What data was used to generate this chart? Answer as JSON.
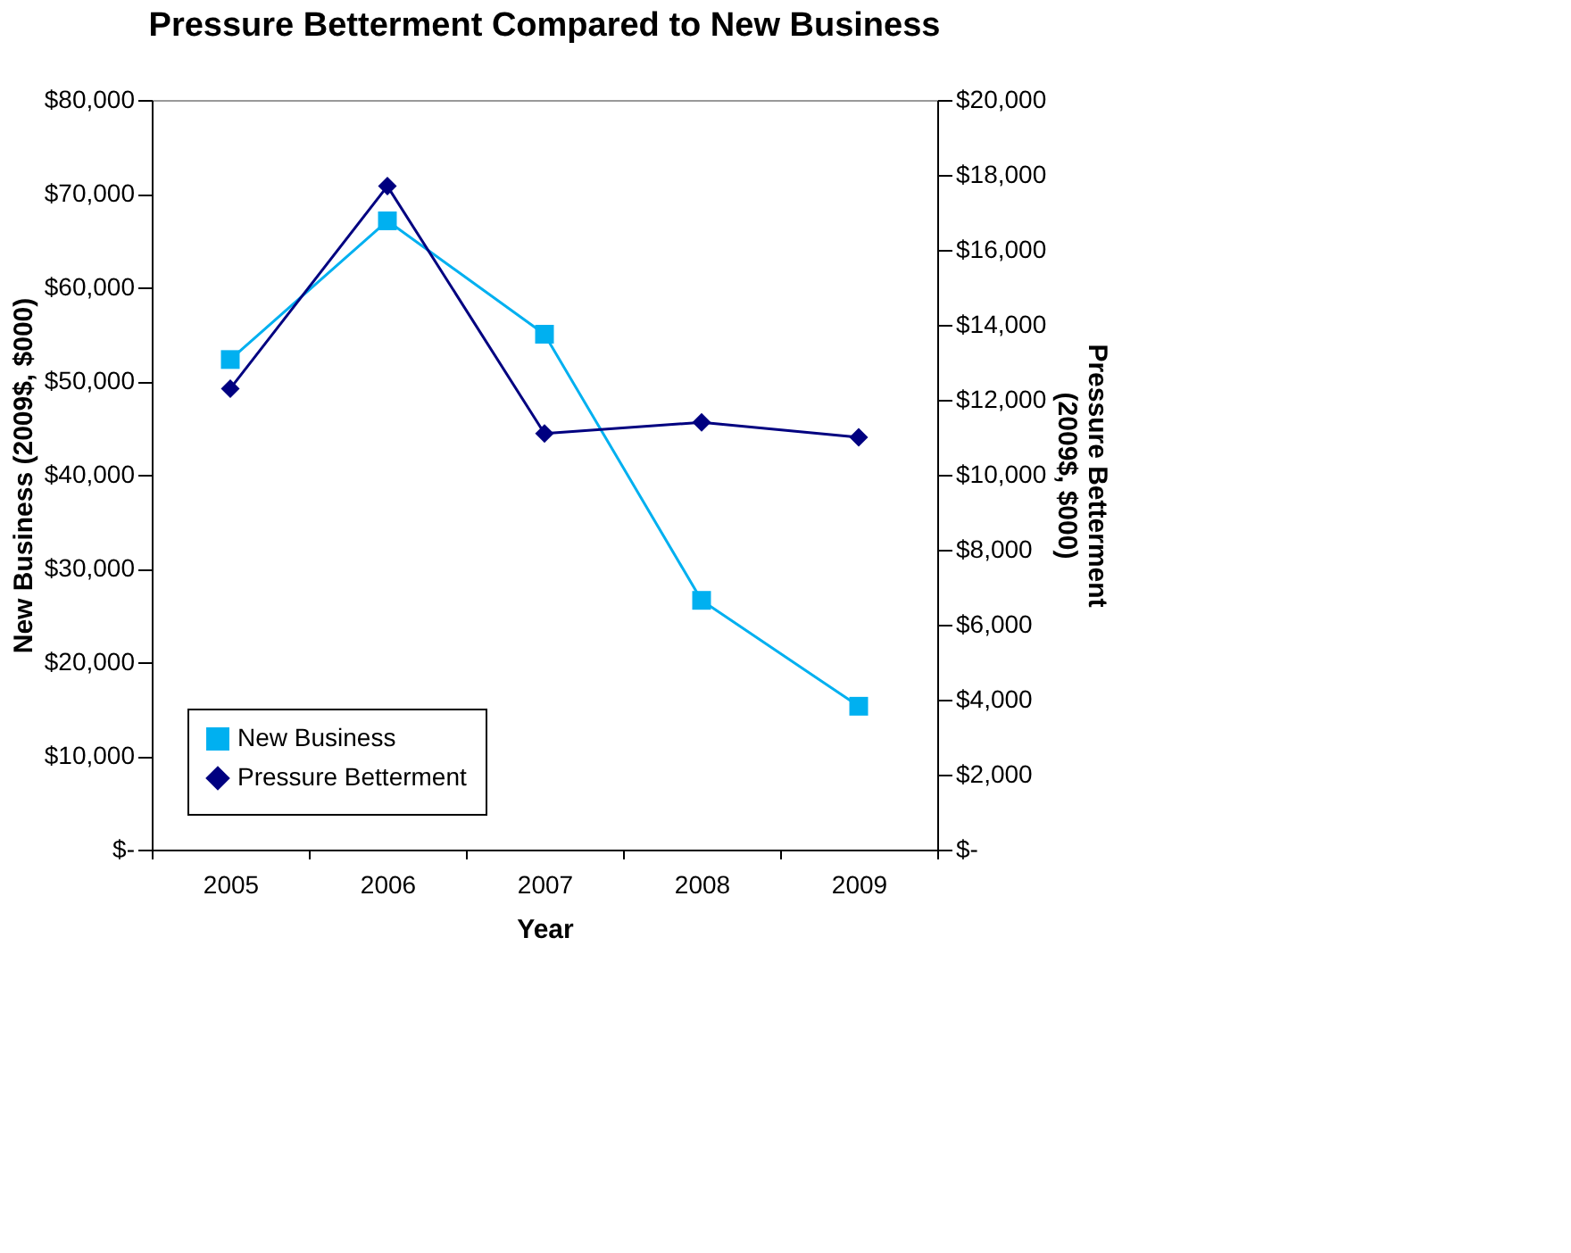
{
  "chart_data": {
    "type": "line",
    "title": "Pressure Betterment Compared to New Business",
    "xlabel": "Year",
    "ylabel": "New Business  (2009$,  $000)",
    "y2label": "Pressure Betterment (2009$, $000)",
    "categories": [
      "2005",
      "2006",
      "2007",
      "2008",
      "2009"
    ],
    "series": [
      {
        "name": "New Business",
        "color": "#00b0f0",
        "marker": "square",
        "values": [
          52300,
          67100,
          55000,
          26600,
          15300
        ]
      },
      {
        "name": "Pressure Betterment",
        "color": "#000080",
        "marker": "diamond",
        "axis": "y2",
        "values": [
          12300,
          17700,
          11100,
          11400,
          11000
        ]
      }
    ],
    "ylim": [
      0,
      80000
    ],
    "yticks": [
      {
        "value": 0,
        "label": "$-"
      },
      {
        "value": 10000,
        "label": "$10,000"
      },
      {
        "value": 20000,
        "label": "$20,000"
      },
      {
        "value": 30000,
        "label": "$30,000"
      },
      {
        "value": 40000,
        "label": "$40,000"
      },
      {
        "value": 50000,
        "label": "$50,000"
      },
      {
        "value": 60000,
        "label": "$60,000"
      },
      {
        "value": 70000,
        "label": "$70,000"
      },
      {
        "value": 80000,
        "label": "$80,000"
      }
    ],
    "y2lim": [
      0,
      20000
    ],
    "y2ticks": [
      {
        "value": 0,
        "label": "$-"
      },
      {
        "value": 2000,
        "label": "$2,000"
      },
      {
        "value": 4000,
        "label": "$4,000"
      },
      {
        "value": 6000,
        "label": "$6,000"
      },
      {
        "value": 8000,
        "label": "$8,000"
      },
      {
        "value": 10000,
        "label": "$10,000"
      },
      {
        "value": 12000,
        "label": "$12,000"
      },
      {
        "value": 14000,
        "label": "$14,000"
      },
      {
        "value": 16000,
        "label": "$16,000"
      },
      {
        "value": 18000,
        "label": "$18,000"
      },
      {
        "value": 20000,
        "label": "$20,000"
      }
    ],
    "grid": false,
    "legend": "bottom left",
    "line_style": "solid"
  }
}
